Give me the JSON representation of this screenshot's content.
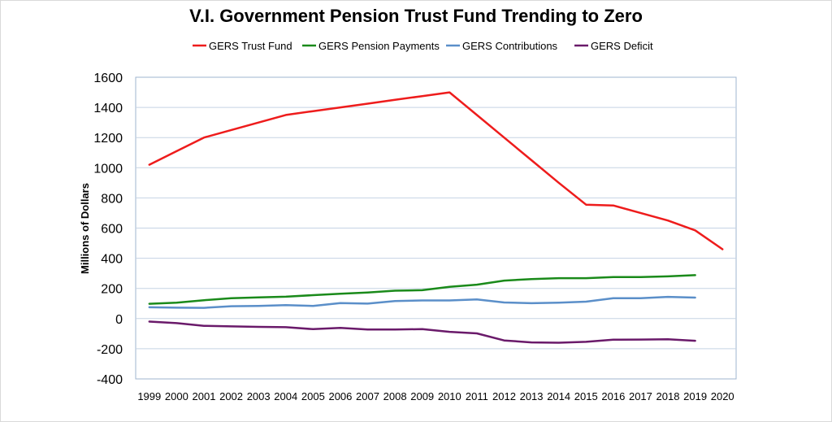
{
  "chart_data": {
    "type": "line",
    "title": "V.I. Government Pension Trust Fund Trending to Zero",
    "xlabel": "",
    "ylabel": "Millions of Dollars",
    "ylim": [
      -400,
      1600
    ],
    "yticks": [
      -400,
      -200,
      0,
      200,
      400,
      600,
      800,
      1000,
      1200,
      1400,
      1600
    ],
    "grid": "horizontal",
    "legend_position": "top",
    "x": [
      "1999",
      "2000",
      "2001",
      "2002",
      "2003",
      "2004",
      "2005",
      "2006",
      "2007",
      "2008",
      "2009",
      "2010",
      "2011",
      "2012",
      "2013",
      "2014",
      "2015",
      "2016",
      "2017",
      "2018",
      "2019",
      "2020"
    ],
    "series": [
      {
        "name": "GERS Trust Fund",
        "color": "#ee1c1c",
        "values": [
          1020,
          1110,
          1200,
          1250,
          1300,
          1350,
          1375,
          1400,
          1425,
          1450,
          1475,
          1500,
          1350,
          1200,
          1050,
          900,
          755,
          750,
          700,
          650,
          585,
          460
        ]
      },
      {
        "name": "GERS Pension Payments",
        "color": "#1a8a1a",
        "values": [
          98,
          105,
          122,
          135,
          140,
          145,
          155,
          165,
          173,
          185,
          188,
          210,
          225,
          252,
          262,
          268,
          268,
          275,
          275,
          280,
          288,
          null
        ]
      },
      {
        "name": "GERS Contributions",
        "color": "#5b8fc9",
        "values": [
          75,
          72,
          71,
          82,
          84,
          89,
          84,
          103,
          99,
          116,
          120,
          120,
          127,
          107,
          102,
          105,
          112,
          135,
          135,
          144,
          139,
          null
        ]
      },
      {
        "name": "GERS Deficit",
        "color": "#6a1a6a",
        "values": [
          -20,
          -30,
          -48,
          -52,
          -55,
          -57,
          -70,
          -62,
          -73,
          -72,
          -70,
          -88,
          -98,
          -145,
          -158,
          -160,
          -154,
          -140,
          -139,
          -137,
          -147,
          null
        ]
      }
    ]
  }
}
